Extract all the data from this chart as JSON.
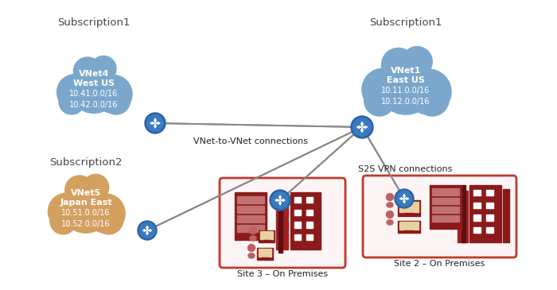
{
  "bg_color": "#ffffff",
  "sub1_left_label": "Subscription1",
  "sub1_right_label": "Subscription1",
  "sub2_label": "Subscription2",
  "cloud_blue": "#7ba7cc",
  "cloud_orange": "#d4a060",
  "vnet4_lines": [
    "VNet4",
    "West US",
    "10.41.0.0/16",
    "10.42.0.0/16"
  ],
  "vnet1_lines": [
    "VNet1",
    "East US",
    "10.11.0.0/16",
    "10.12.0.0/16"
  ],
  "vnet5_lines": [
    "VNet5",
    "Japan East",
    "10.51.0.0/16",
    "10.52.0.0/16"
  ],
  "site3_label": "Site 3 – On Premises",
  "site2_label": "Site 2 – On Premises",
  "vnet_to_vnet_label": "VNet-to-VNet connections",
  "s2s_vpn_label": "S2S VPN connections",
  "gw_outer": "#2e5fa3",
  "gw_inner": "#3a7abf",
  "arrow_color": "#888888",
  "site_border": "#c0392b",
  "site_bg": "#fdf5f5",
  "dark_red": "#8b1a1a",
  "mid_red": "#a52020",
  "person_color": "#c06060",
  "text_dark": "#222222",
  "text_sub": "#444444",
  "text_white": "#ffffff"
}
